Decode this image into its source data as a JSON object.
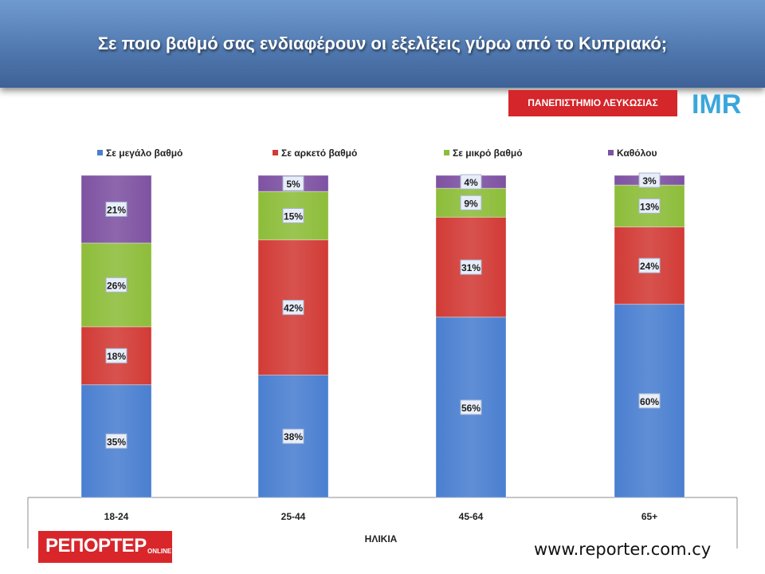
{
  "header": {
    "title": "Σε ποιο βαθμό σας ενδιαφέρουν οι εξελίξεις γύρω από το Κυπριακό;"
  },
  "logos": {
    "university": "ΠΑΝΕΠΙΣΤΗΜΙΟ ΛΕΥΚΩΣΙΑΣ",
    "imr": "IMR",
    "reporter_main": "ΡΕΠΟΡΤΕΡ",
    "reporter_sub": "ONLINE"
  },
  "footer": {
    "website": "www.reporter.com.cy"
  },
  "chart_data": {
    "type": "bar",
    "stacked": true,
    "percent_stacked": true,
    "categories": [
      "18-24",
      "25-44",
      "45-64",
      "65+"
    ],
    "xlabel": "ΗΛΙΚΙΑ",
    "ylabel": "",
    "ylim": [
      0,
      100
    ],
    "legend_position": "top",
    "grid": false,
    "series": [
      {
        "name": "Σε μεγάλο βαθμό",
        "color": "#4a7fd0",
        "values": [
          35,
          38,
          56,
          60
        ]
      },
      {
        "name": "Σε αρκετό βαθμό",
        "color": "#d23b36",
        "values": [
          18,
          42,
          31,
          24
        ]
      },
      {
        "name": "Σε μικρό βαθμό",
        "color": "#8dbd3a",
        "values": [
          26,
          15,
          9,
          13
        ]
      },
      {
        "name": "Καθόλου",
        "color": "#7e52a2",
        "values": [
          21,
          5,
          4,
          3
        ]
      }
    ],
    "value_format": "{v}%"
  }
}
